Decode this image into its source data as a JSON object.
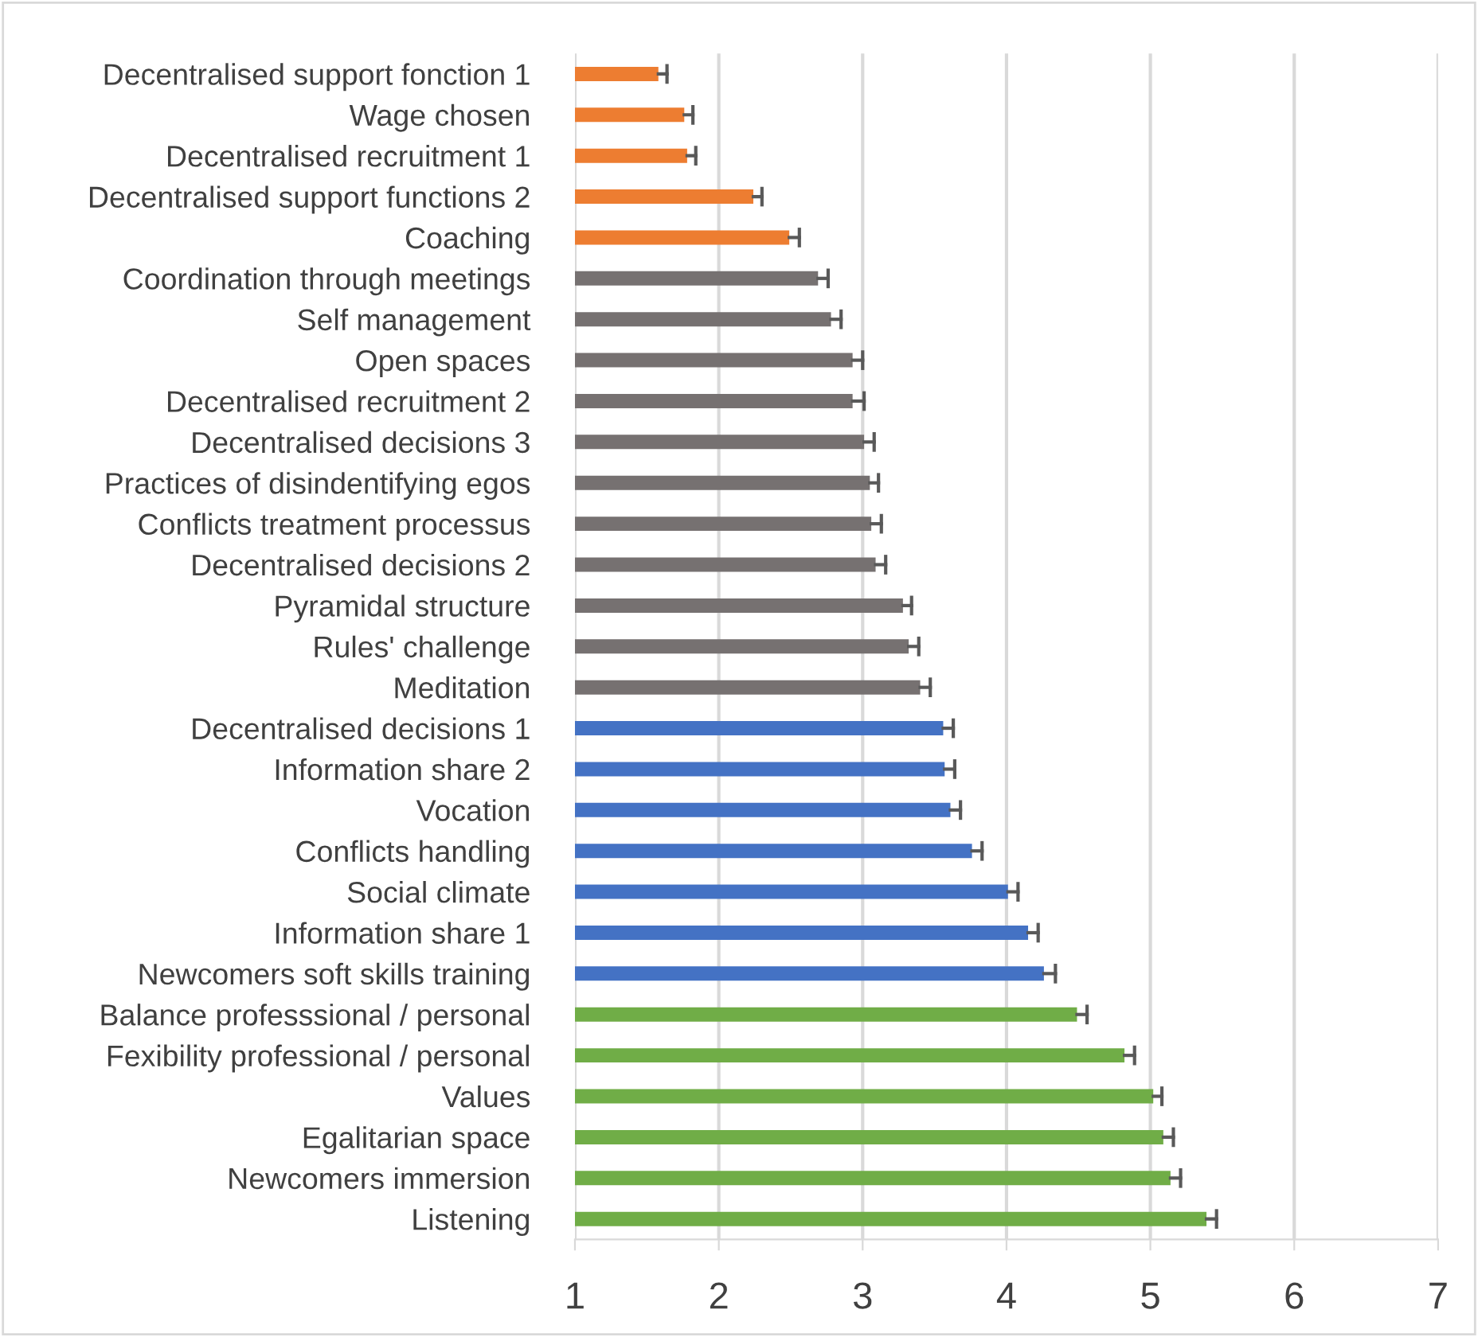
{
  "chart_data": {
    "type": "bar",
    "orientation": "horizontal",
    "categories": [
      "Decentralised support fonction 1",
      "Wage chosen",
      "Decentralised recruitment 1",
      "Decentralised support functions 2",
      "Coaching",
      "Coordination through meetings",
      "Self management",
      "Open spaces",
      "Decentralised recruitment 2",
      "Decentralised decisions 3",
      "Practices of disindentifying egos",
      "Conflicts treatment processus",
      "Decentralised decisions 2",
      "Pyramidal structure",
      "Rules' challenge",
      "Meditation",
      "Decentralised decisions 1",
      "Information share 2",
      "Vocation",
      "Conflicts handling",
      "Social climate",
      "Information share 1",
      "Newcomers soft skills training",
      "Balance professsional / personal",
      "Fexibility professional / personal",
      "Values",
      "Egalitarian space",
      "Newcomers immersion",
      "Listening"
    ],
    "values": [
      1.58,
      1.76,
      1.78,
      2.24,
      2.49,
      2.69,
      2.78,
      2.93,
      2.93,
      3.01,
      3.05,
      3.06,
      3.09,
      3.28,
      3.32,
      3.4,
      3.56,
      3.57,
      3.61,
      3.76,
      4.01,
      4.15,
      4.26,
      4.49,
      4.82,
      5.02,
      5.09,
      5.14,
      5.39
    ],
    "errors": [
      [
        1.58,
        1.64
      ],
      [
        1.76,
        1.82
      ],
      [
        1.78,
        1.84
      ],
      [
        2.24,
        2.3
      ],
      [
        2.49,
        2.56
      ],
      [
        2.69,
        2.76
      ],
      [
        2.78,
        2.85
      ],
      [
        2.93,
        3.0
      ],
      [
        2.93,
        3.01
      ],
      [
        3.01,
        3.08
      ],
      [
        3.05,
        3.11
      ],
      [
        3.06,
        3.13
      ],
      [
        3.09,
        3.16
      ],
      [
        3.28,
        3.34
      ],
      [
        3.32,
        3.39
      ],
      [
        3.4,
        3.47
      ],
      [
        3.56,
        3.63
      ],
      [
        3.57,
        3.64
      ],
      [
        3.61,
        3.68
      ],
      [
        3.76,
        3.83
      ],
      [
        4.01,
        4.08
      ],
      [
        4.15,
        4.22
      ],
      [
        4.26,
        4.34
      ],
      [
        4.49,
        4.56
      ],
      [
        4.82,
        4.89
      ],
      [
        5.02,
        5.08
      ],
      [
        5.09,
        5.16
      ],
      [
        5.14,
        5.21
      ],
      [
        5.39,
        5.46
      ]
    ],
    "colors": [
      "#ed7d31",
      "#ed7d31",
      "#ed7d31",
      "#ed7d31",
      "#ed7d31",
      "#767171",
      "#767171",
      "#767171",
      "#767171",
      "#767171",
      "#767171",
      "#767171",
      "#767171",
      "#767171",
      "#767171",
      "#767171",
      "#4472c4",
      "#4472c4",
      "#4472c4",
      "#4472c4",
      "#4472c4",
      "#4472c4",
      "#4472c4",
      "#70ad47",
      "#70ad47",
      "#70ad47",
      "#70ad47",
      "#70ad47",
      "#70ad47"
    ],
    "xlim": [
      1,
      7
    ],
    "xticks": [
      1,
      2,
      3,
      4,
      5,
      6,
      7
    ],
    "grid": "x"
  }
}
